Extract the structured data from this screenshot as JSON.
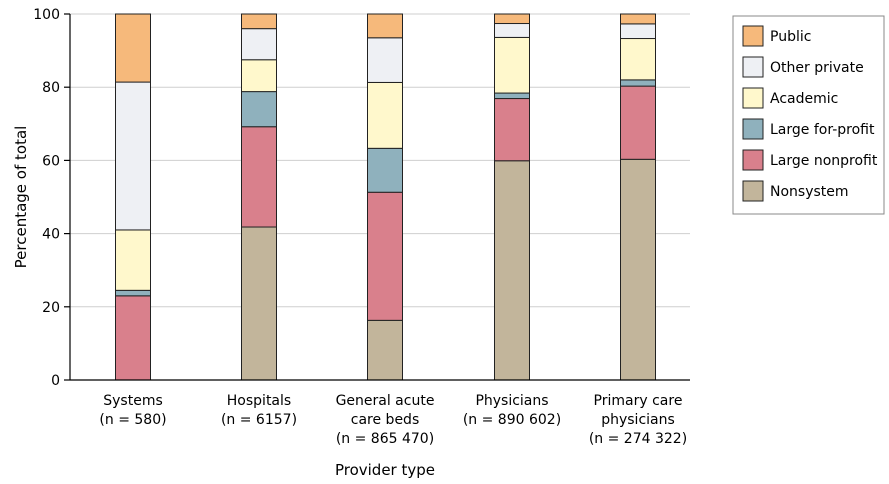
{
  "chart_data": {
    "type": "bar",
    "stacked": true,
    "xlabel": "Provider type",
    "ylabel": "Percentage of total",
    "ylim": [
      0,
      100
    ],
    "yticks": [
      0,
      20,
      40,
      60,
      80,
      100
    ],
    "grid": true,
    "legend_position": "top-right",
    "categories": [
      {
        "lines": [
          "Systems",
          "(n = 580)"
        ]
      },
      {
        "lines": [
          "Hospitals",
          "(n = 6157)"
        ]
      },
      {
        "lines": [
          "General acute",
          "care beds",
          "(n = 865 470)"
        ]
      },
      {
        "lines": [
          "Physicians",
          "(n = 890 602)"
        ]
      },
      {
        "lines": [
          "Primary care",
          "physicians",
          "(n = 274 322)"
        ]
      }
    ],
    "series": [
      {
        "name": "Nonsystem",
        "color": "#c2b59b",
        "values": [
          0,
          41.8,
          16.3,
          59.9,
          60.3
        ]
      },
      {
        "name": "Large nonprofit",
        "color": "#d9808c",
        "values": [
          23.0,
          27.4,
          35.0,
          17.0,
          20.0
        ]
      },
      {
        "name": "Large for-profit",
        "color": "#8fb1bd",
        "values": [
          1.5,
          9.6,
          12.0,
          1.5,
          1.7
        ]
      },
      {
        "name": "Academic",
        "color": "#fff8cc",
        "values": [
          16.5,
          8.7,
          18.0,
          15.2,
          11.3
        ]
      },
      {
        "name": "Other private",
        "color": "#eef0f4",
        "values": [
          40.4,
          8.5,
          12.2,
          3.8,
          4.0
        ]
      },
      {
        "name": "Public",
        "color": "#f6b97b",
        "values": [
          18.6,
          4.0,
          6.5,
          2.6,
          2.7
        ]
      }
    ],
    "legend_order": [
      "Public",
      "Other private",
      "Academic",
      "Large for-profit",
      "Large nonprofit",
      "Nonsystem"
    ]
  }
}
